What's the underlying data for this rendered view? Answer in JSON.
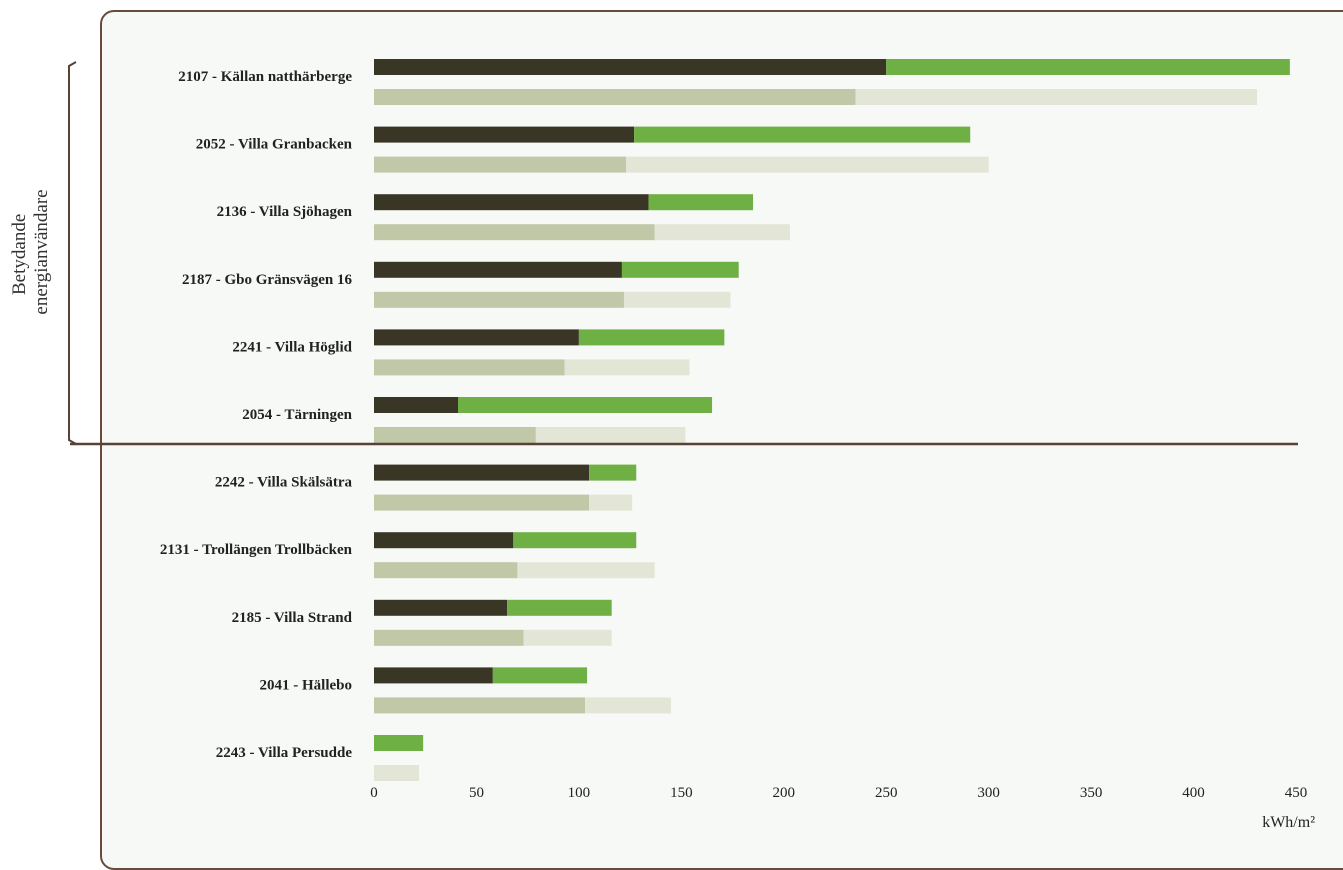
{
  "chart_data": {
    "type": "bar",
    "orientation": "horizontal",
    "stacked": true,
    "categories": [
      "2107 - Källan natthärberge",
      "2052 - Villa Granbacken",
      "2136 - Villa Sjöhagen",
      "2187 - Gbo Gränsvägen 16",
      "2241 - Villa Höglid",
      "2054 - Tärningen",
      "2242 - Villa Skälsätra",
      "2131 - Trollängen Trollbäcken",
      "2185 - Villa Strand",
      "2041 - Hällebo",
      "2243 - Villa Persudde"
    ],
    "bar_pairs": [
      {
        "upper": [
          {
            "values": [
              250,
              127,
              134,
              121,
              100,
              41,
              105,
              68,
              65,
              58,
              0
            ],
            "color": "#3a3626"
          },
          {
            "values": [
              197,
              164,
              51,
              57,
              71,
              124,
              23,
              60,
              51,
              46,
              24
            ],
            "color": "#6eb043"
          }
        ],
        "lower": [
          {
            "values": [
              235,
              123,
              137,
              122,
              93,
              79,
              105,
              70,
              73,
              103,
              0
            ],
            "color": "#c0c8a8"
          },
          {
            "values": [
              196,
              177,
              66,
              52,
              61,
              73,
              21,
              67,
              43,
              42,
              22
            ],
            "color": "#e3e6d6"
          }
        ]
      }
    ],
    "xlim": [
      0,
      450
    ],
    "xticks": [
      "0",
      "50",
      "100",
      "150",
      "200",
      "250",
      "300",
      "350",
      "400",
      "450"
    ],
    "xlabel": "kWh/m²",
    "group_annotation": {
      "line1": "Betydande",
      "line2": "energianvändare",
      "covers_first_n": 6
    },
    "grid": false
  }
}
